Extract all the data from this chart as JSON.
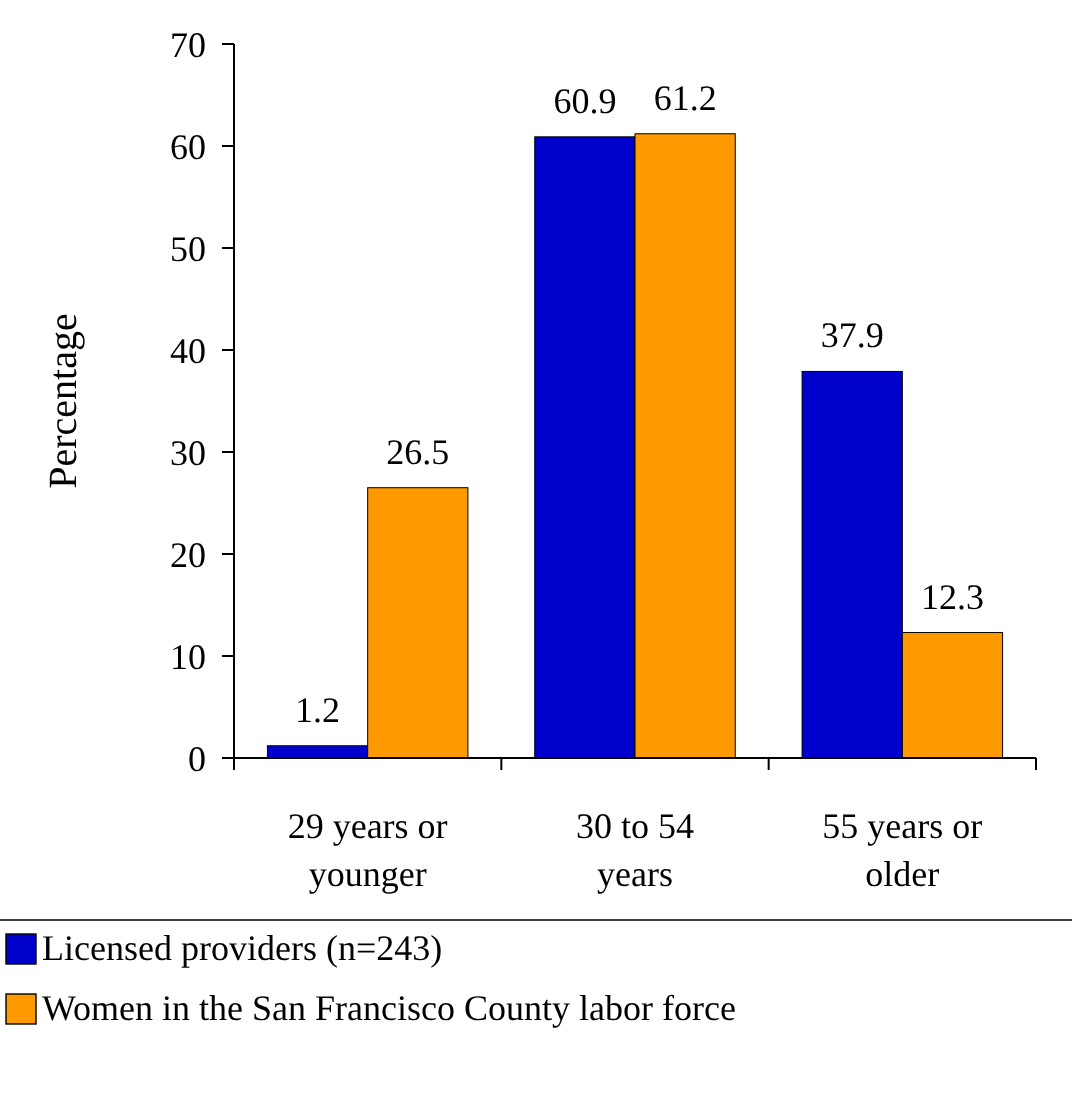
{
  "chart_data": {
    "type": "bar",
    "ylabel": "Percentage",
    "categories": [
      "29 years or younger",
      "30 to 54 years",
      "55 years or older"
    ],
    "series": [
      {
        "name": "Licensed providers (n=243)",
        "color": "#0000cc",
        "values": [
          1.2,
          60.9,
          37.9
        ]
      },
      {
        "name": "Women in the San Francisco County labor force",
        "color": "#ff9900",
        "values": [
          26.5,
          61.2,
          12.3
        ]
      }
    ],
    "ylim": [
      0,
      70
    ],
    "yticks": [
      0,
      10,
      20,
      30,
      40,
      50,
      60,
      70
    ],
    "data_labels": true,
    "legend": "bottom",
    "grid": false
  }
}
